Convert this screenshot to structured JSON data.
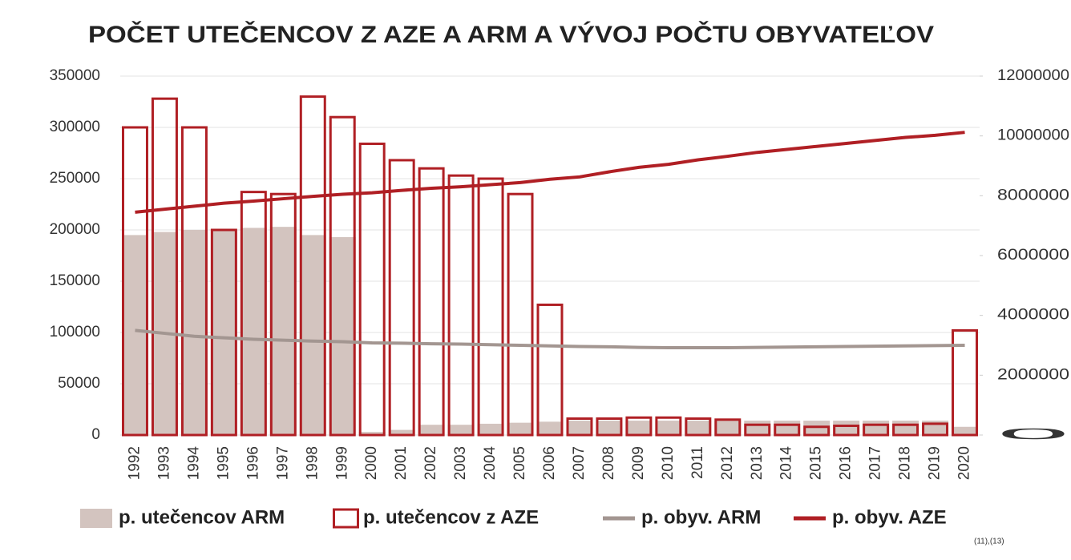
{
  "chart_data": {
    "type": "bar",
    "title": "POČET UTEČENCOV Z AZE A ARM A VÝVOJ POČTU OBYVATEĽOV",
    "footnote": "(11),(13)",
    "categories": [
      "1992",
      "1993",
      "1994",
      "1995",
      "1996",
      "1997",
      "1998",
      "1999",
      "2000",
      "2001",
      "2002",
      "2003",
      "2004",
      "2005",
      "2006",
      "2007",
      "2008",
      "2009",
      "2010",
      "2011",
      "2012",
      "2013",
      "2014",
      "2015",
      "2016",
      "2017",
      "2018",
      "2019",
      "2020"
    ],
    "series": [
      {
        "name": "p. utečencov ARM",
        "type": "bar",
        "fill": "filled",
        "color": "#d3c4bf",
        "values": [
          195000,
          198000,
          200000,
          200000,
          202000,
          203000,
          195000,
          193000,
          3000,
          5000,
          10000,
          10000,
          11000,
          12000,
          13000,
          14000,
          14000,
          14000,
          14000,
          14000,
          14000,
          14000,
          14000,
          14000,
          14000,
          14000,
          14000,
          14000,
          8000
        ]
      },
      {
        "name": "p. utečencov z AZE",
        "type": "bar",
        "fill": "outline",
        "color": "#b01f24",
        "values": [
          300000,
          328000,
          300000,
          200000,
          237000,
          235000,
          330000,
          310000,
          284000,
          268000,
          260000,
          253000,
          250000,
          235000,
          127000,
          16000,
          16000,
          17000,
          17000,
          16000,
          15000,
          10000,
          10000,
          8000,
          9000,
          10000,
          10000,
          11000,
          102000
        ]
      },
      {
        "name": "p. obyv. ARM",
        "type": "line",
        "axis": "y2",
        "color": "#a39691",
        "values": [
          3500000,
          3400000,
          3300000,
          3250000,
          3200000,
          3170000,
          3140000,
          3120000,
          3080000,
          3070000,
          3050000,
          3040000,
          3020000,
          3000000,
          2980000,
          2960000,
          2950000,
          2930000,
          2920000,
          2920000,
          2920000,
          2930000,
          2940000,
          2950000,
          2960000,
          2970000,
          2980000,
          2990000,
          3000000
        ]
      },
      {
        "name": "p. obyv. AZE",
        "type": "line",
        "axis": "y2",
        "color": "#b01f24",
        "values": [
          7450000,
          7550000,
          7650000,
          7750000,
          7820000,
          7900000,
          7980000,
          8050000,
          8100000,
          8180000,
          8250000,
          8300000,
          8370000,
          8440000,
          8550000,
          8630000,
          8800000,
          8950000,
          9050000,
          9200000,
          9320000,
          9450000,
          9550000,
          9650000,
          9750000,
          9850000,
          9950000,
          10020000,
          10120000
        ]
      }
    ],
    "ylim": [
      0,
      350000
    ],
    "yticks": [
      0,
      50000,
      100000,
      150000,
      200000,
      250000,
      300000,
      350000
    ],
    "y2lim": [
      0,
      12000000
    ],
    "y2ticks": [
      0,
      2000000,
      4000000,
      6000000,
      8000000,
      10000000,
      12000000
    ],
    "grid": true
  }
}
